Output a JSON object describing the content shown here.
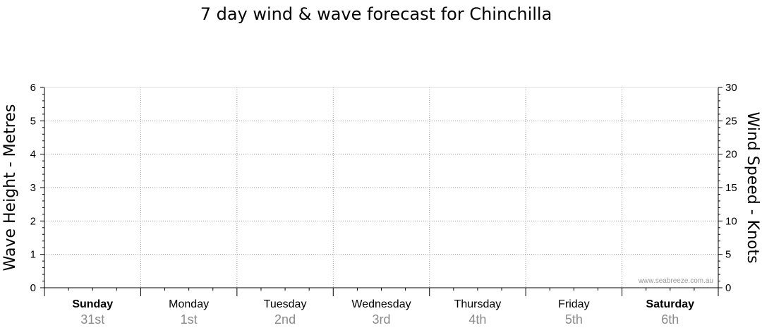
{
  "chart_data": {
    "type": "line",
    "title": "7 day wind & wave forecast for Chinchilla",
    "ylabel_left": "Wave Height - Metres",
    "ylabel_right": "Wind Speed - Knots",
    "ylim_left": [
      0,
      6
    ],
    "ylim_right": [
      0,
      30
    ],
    "yticks_left": [
      "0",
      "1",
      "2",
      "3",
      "4",
      "5",
      "6"
    ],
    "yticks_right": [
      "0",
      "5",
      "10",
      "15",
      "20",
      "25",
      "30"
    ],
    "grid": true,
    "days": [
      {
        "name": "Sunday",
        "date": "31st",
        "bold": true
      },
      {
        "name": "Monday",
        "date": "1st",
        "bold": false
      },
      {
        "name": "Tuesday",
        "date": "2nd",
        "bold": false
      },
      {
        "name": "Wednesday",
        "date": "3rd",
        "bold": false
      },
      {
        "name": "Thursday",
        "date": "4th",
        "bold": false
      },
      {
        "name": "Friday",
        "date": "5th",
        "bold": false
      },
      {
        "name": "Saturday",
        "date": "6th",
        "bold": true
      }
    ],
    "series": []
  },
  "watermark": "www.seabreeze.com.au"
}
